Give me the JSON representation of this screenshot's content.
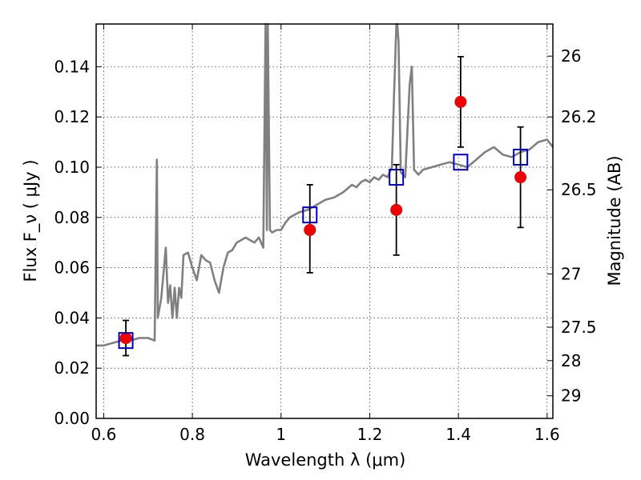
{
  "chart_data": {
    "type": "scatter",
    "xlabel": "Wavelength  λ (μm)",
    "ylabel": "Flux  F_ν  ( μJy )",
    "ylabel_right": "Magnitude (AB)",
    "xlim": [
      0.583,
      1.613
    ],
    "ylim": [
      0.0,
      0.157
    ],
    "grid": true,
    "x_ticks": [
      0.6,
      0.8,
      1.0,
      1.2,
      1.4,
      1.6
    ],
    "x_tick_labels": [
      "0.6",
      "0.8",
      "1",
      "1.2",
      "1.4",
      "1.6"
    ],
    "y_ticks": [
      0.0,
      0.02,
      0.04,
      0.06,
      0.08,
      0.1,
      0.12,
      0.14
    ],
    "y_tick_labels": [
      "0.00",
      "0.02",
      "0.04",
      "0.06",
      "0.08",
      "0.10",
      "0.12",
      "0.14"
    ],
    "right_ticks": [
      {
        "label": "26",
        "flux": 0.1442
      },
      {
        "label": "26.2",
        "flux": 0.12
      },
      {
        "label": "26.5",
        "flux": 0.091
      },
      {
        "label": "27",
        "flux": 0.0575
      },
      {
        "label": "27.5",
        "flux": 0.0363
      },
      {
        "label": "28",
        "flux": 0.023
      },
      {
        "label": "29",
        "flux": 0.009
      }
    ],
    "series": [
      {
        "style": "line",
        "color": "#808080",
        "x": [
          0.583,
          0.6,
          0.62,
          0.64,
          0.66,
          0.68,
          0.7,
          0.715,
          0.72,
          0.722,
          0.73,
          0.74,
          0.745,
          0.75,
          0.755,
          0.76,
          0.765,
          0.77,
          0.775,
          0.78,
          0.79,
          0.8,
          0.81,
          0.82,
          0.83,
          0.84,
          0.85,
          0.86,
          0.87,
          0.88,
          0.89,
          0.9,
          0.91,
          0.92,
          0.93,
          0.94,
          0.95,
          0.96,
          0.965,
          0.968,
          0.97,
          0.975,
          0.98,
          0.99,
          1.0,
          1.01,
          1.02,
          1.04,
          1.06,
          1.08,
          1.1,
          1.12,
          1.14,
          1.16,
          1.17,
          1.18,
          1.19,
          1.2,
          1.21,
          1.22,
          1.23,
          1.24,
          1.25,
          1.255,
          1.26,
          1.262,
          1.265,
          1.27,
          1.28,
          1.29,
          1.295,
          1.3,
          1.31,
          1.32,
          1.34,
          1.36,
          1.38,
          1.4,
          1.42,
          1.44,
          1.46,
          1.48,
          1.5,
          1.52,
          1.54,
          1.56,
          1.58,
          1.6,
          1.613
        ],
        "y": [
          0.029,
          0.029,
          0.03,
          0.031,
          0.031,
          0.032,
          0.032,
          0.031,
          0.103,
          0.04,
          0.048,
          0.068,
          0.046,
          0.053,
          0.04,
          0.052,
          0.04,
          0.052,
          0.048,
          0.065,
          0.066,
          0.06,
          0.055,
          0.065,
          0.063,
          0.062,
          0.055,
          0.05,
          0.06,
          0.066,
          0.067,
          0.07,
          0.071,
          0.072,
          0.071,
          0.07,
          0.072,
          0.068,
          0.16,
          0.075,
          0.16,
          0.075,
          0.074,
          0.075,
          0.075,
          0.078,
          0.08,
          0.082,
          0.083,
          0.085,
          0.087,
          0.088,
          0.09,
          0.093,
          0.092,
          0.094,
          0.095,
          0.094,
          0.096,
          0.095,
          0.097,
          0.096,
          0.1,
          0.13,
          0.16,
          0.16,
          0.15,
          0.098,
          0.096,
          0.133,
          0.14,
          0.099,
          0.097,
          0.099,
          0.1,
          0.101,
          0.102,
          0.101,
          0.1,
          0.103,
          0.106,
          0.108,
          0.105,
          0.104,
          0.106,
          0.107,
          0.11,
          0.111,
          0.108
        ]
      },
      {
        "style": "squares",
        "color": "#0000cc",
        "x": [
          0.65,
          1.065,
          1.26,
          1.405,
          1.54
        ],
        "y": [
          0.031,
          0.081,
          0.096,
          0.102,
          0.104
        ]
      },
      {
        "style": "points",
        "color": "#ee0000",
        "x": [
          0.65,
          1.065,
          1.26,
          1.405,
          1.54
        ],
        "y": [
          0.032,
          0.075,
          0.083,
          0.126,
          0.096
        ],
        "yerr_low": [
          0.025,
          0.058,
          0.065,
          0.108,
          0.076
        ],
        "yerr_high": [
          0.039,
          0.093,
          0.101,
          0.144,
          0.116
        ]
      }
    ]
  }
}
